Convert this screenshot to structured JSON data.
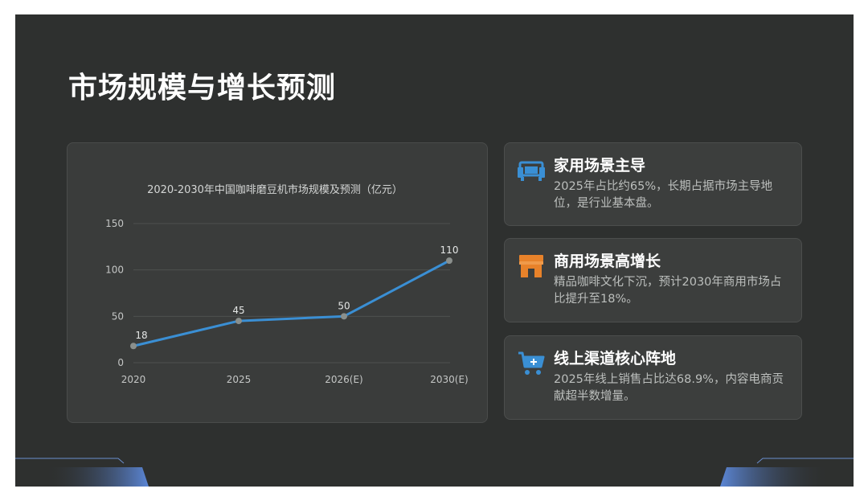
{
  "title": "市场规模与增长预测",
  "chart_data": {
    "type": "line",
    "title": "2020-2030年中国咖啡磨豆机市场规模及预测（亿元）",
    "categories": [
      "2020",
      "2025",
      "2026(E)",
      "2030(E)"
    ],
    "values": [
      18,
      45,
      50,
      110
    ],
    "data_labels": [
      "18",
      "45",
      "50",
      "110"
    ],
    "yticks": [
      0,
      50,
      100,
      150
    ],
    "ylim": [
      0,
      150
    ],
    "grid": true,
    "legend": "none",
    "line_color": "#3a8fd4",
    "marker_color": "#8a8f8c"
  },
  "cards": [
    {
      "icon": "sofa-icon",
      "heading": "家用场景主导",
      "body": "2025年占比约65%，长期占据市场主导地位，是行业基本盘。",
      "icon_color": "#3a8fd4"
    },
    {
      "icon": "storefront-icon",
      "heading": "商用场景高增长",
      "body": "精品咖啡文化下沉，预计2030年商用市场占比提升至18%。",
      "icon_color": "#e8822a"
    },
    {
      "icon": "shopping-cart-icon",
      "heading": "线上渠道核心阵地",
      "body": "2025年线上销售占比达68.9%，内容电商贡献超半数增量。",
      "icon_color": "#3a8fd4"
    }
  ]
}
